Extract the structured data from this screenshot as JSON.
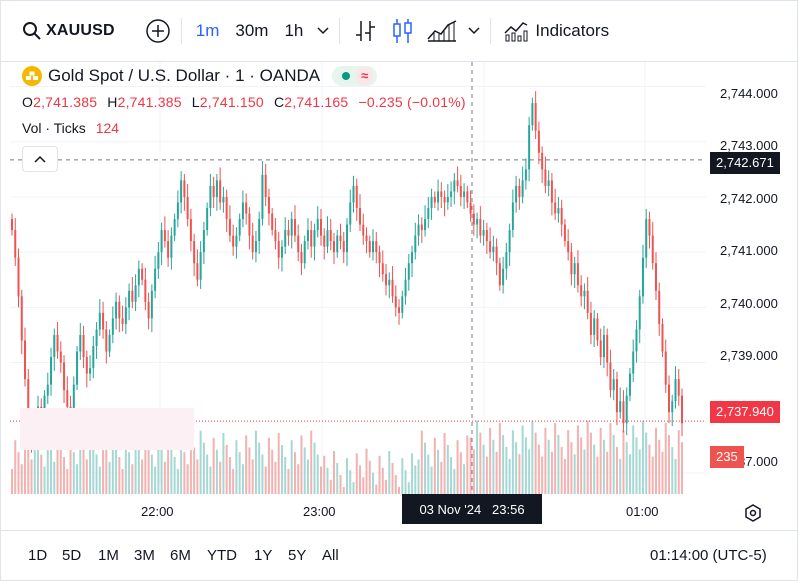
{
  "toolbar": {
    "symbol": "XAUUSD",
    "intervals": [
      "1m",
      "30m",
      "1h"
    ],
    "indicators_label": "Indicators"
  },
  "header": {
    "title": "Gold Spot / U.S. Dollar · 1 · OANDA",
    "ohlc": {
      "o_label": "O",
      "o": "2,741.385",
      "h_label": "H",
      "h": "2,741.385",
      "l_label": "L",
      "l": "2,741.150",
      "c_label": "C",
      "c": "2,741.165",
      "change": "−0.235 (−0.01%)"
    },
    "volume": {
      "label": "Vol · Ticks",
      "value": "124"
    }
  },
  "price_axis": {
    "ticks": [
      "2,744.000",
      "2,743.000",
      "2,742.000",
      "2,741.000",
      "2,740.000",
      "2,739.000",
      "2,737.000"
    ],
    "crosshair_price": "2,742.671",
    "last_price": "2,737.940",
    "last_volume": "235"
  },
  "time_axis": {
    "ticks": [
      "22:00",
      "23:00",
      "01:00"
    ],
    "crosshair_time": "03 Nov '24   23:56"
  },
  "bottom": {
    "ranges": [
      "1D",
      "5D",
      "1M",
      "3M",
      "6M",
      "YTD",
      "1Y",
      "5Y",
      "All"
    ],
    "clock": "01:14:00 (UTC-5)"
  },
  "colors": {
    "up": "#26a69a",
    "down": "#ef5350",
    "accent": "#2962ff",
    "dark": "#131722"
  },
  "chart_data": {
    "type": "candlestick",
    "price_unit": "USD",
    "ylim": [
      2736.8,
      2744.3
    ],
    "crosshair_price": 2742.671,
    "last_price": 2737.94,
    "closes": [
      2741.4,
      2740.9,
      2740.2,
      2739.4,
      2738.7,
      2738.0,
      2737.6,
      2737.8,
      2738.2,
      2738.0,
      2738.4,
      2738.6,
      2739.1,
      2739.5,
      2739.2,
      2739.0,
      2738.5,
      2738.2,
      2738.1,
      2738.6,
      2739.2,
      2739.5,
      2739.1,
      2738.8,
      2738.9,
      2739.3,
      2739.6,
      2739.9,
      2739.6,
      2739.2,
      2739.5,
      2739.8,
      2740.1,
      2739.8,
      2739.7,
      2740.0,
      2740.3,
      2740.1,
      2740.4,
      2740.7,
      2740.5,
      2740.1,
      2739.8,
      2740.3,
      2740.7,
      2741.0,
      2741.4,
      2741.2,
      2740.9,
      2741.3,
      2741.6,
      2741.9,
      2742.3,
      2742.0,
      2741.6,
      2741.2,
      2740.8,
      2740.5,
      2741.0,
      2741.4,
      2741.8,
      2742.2,
      2742.0,
      2742.3,
      2741.9,
      2742.0,
      2741.6,
      2741.3,
      2741.1,
      2741.3,
      2741.6,
      2741.9,
      2741.7,
      2741.3,
      2741.0,
      2741.2,
      2741.6,
      2742.4,
      2742.0,
      2741.7,
      2741.4,
      2741.2,
      2740.9,
      2741.1,
      2741.4,
      2741.3,
      2741.6,
      2741.3,
      2741.0,
      2740.8,
      2741.2,
      2741.4,
      2741.1,
      2741.4,
      2741.6,
      2741.3,
      2741.1,
      2741.4,
      2741.2,
      2741.0,
      2741.3,
      2741.2,
      2741.0,
      2741.5,
      2741.9,
      2742.2,
      2741.8,
      2741.5,
      2741.3,
      2741.2,
      2741.0,
      2741.2,
      2741.0,
      2740.8,
      2740.6,
      2740.4,
      2740.5,
      2740.2,
      2740.0,
      2739.9,
      2740.2,
      2740.5,
      2740.8,
      2741.0,
      2741.3,
      2741.5,
      2741.4,
      2741.6,
      2741.8,
      2742.0,
      2741.9,
      2742.1,
      2742.0,
      2741.9,
      2742.0,
      2742.1,
      2742.3,
      2742.2,
      2742.0,
      2742.1,
      2741.9,
      2741.7,
      2741.5,
      2741.6,
      2741.3,
      2741.4,
      2741.2,
      2741.0,
      2741.1,
      2740.8,
      2740.4,
      2740.7,
      2741.0,
      2741.4,
      2741.9,
      2742.2,
      2742.0,
      2742.3,
      2742.5,
      2743.3,
      2743.7,
      2743.2,
      2742.8,
      2742.5,
      2742.2,
      2742.3,
      2741.9,
      2741.7,
      2741.8,
      2741.5,
      2741.2,
      2741.0,
      2740.6,
      2740.8,
      2740.4,
      2740.2,
      2740.3,
      2739.9,
      2739.5,
      2739.8,
      2739.4,
      2739.1,
      2739.5,
      2739.0,
      2738.5,
      2738.7,
      2738.1,
      2738.3,
      2737.9,
      2738.4,
      2738.8,
      2739.2,
      2739.6,
      2740.2,
      2740.9,
      2741.6,
      2741.3,
      2740.8,
      2740.3,
      2739.7,
      2739.2,
      2738.6,
      2738.1,
      2738.3,
      2738.7,
      2738.4,
      2737.9
    ]
  }
}
